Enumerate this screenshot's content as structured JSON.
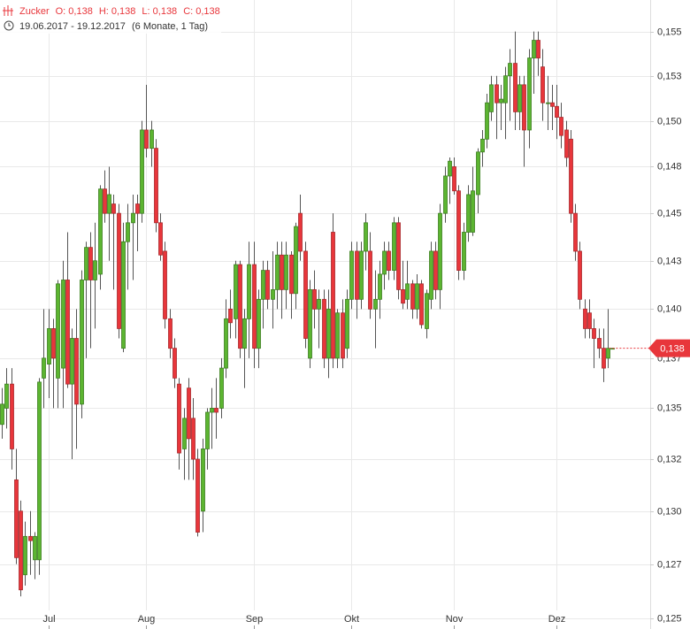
{
  "chart_data": {
    "type": "candlestick",
    "legend_fields": [
      "O: 0,138",
      "H: 0,138",
      "L: 0,138",
      "C: 0,138"
    ],
    "period": "19.06.2017 - 19.12.2017",
    "period_note": "(6 Monate, 1 Tag)",
    "log_scale": true,
    "grid": true,
    "up_color": "#5cb531",
    "down_color": "#e8363b",
    "ylim": [
      0.1245,
      0.1568
    ],
    "yticks": [
      {
        "value": 0.125,
        "label": "0,125"
      },
      {
        "value": 0.1275,
        "label": "0,127"
      },
      {
        "value": 0.13,
        "label": "0,130"
      },
      {
        "value": 0.1325,
        "label": "0,132"
      },
      {
        "value": 0.135,
        "label": "0,135"
      },
      {
        "value": 0.1375,
        "label": "0,137"
      },
      {
        "value": 0.14,
        "label": "0,140"
      },
      {
        "value": 0.1425,
        "label": "0,143"
      },
      {
        "value": 0.145,
        "label": "0,145"
      },
      {
        "value": 0.1475,
        "label": "0,148"
      },
      {
        "value": 0.15,
        "label": "0,150"
      },
      {
        "value": 0.1525,
        "label": "0,153"
      },
      {
        "value": 0.155,
        "label": "0,155"
      }
    ],
    "last_price": {
      "value": 0.138,
      "label": "0,138"
    },
    "categories": [
      null,
      null,
      null,
      null,
      null,
      null,
      null,
      null,
      null,
      null,
      "Jul",
      null,
      null,
      null,
      null,
      null,
      null,
      null,
      null,
      null,
      null,
      null,
      null,
      null,
      null,
      null,
      null,
      null,
      null,
      null,
      null,
      "Aug",
      null,
      null,
      null,
      null,
      null,
      null,
      null,
      null,
      null,
      null,
      null,
      null,
      null,
      null,
      null,
      null,
      null,
      null,
      null,
      null,
      null,
      null,
      "Sep",
      null,
      null,
      null,
      null,
      null,
      null,
      null,
      null,
      null,
      null,
      null,
      null,
      null,
      null,
      null,
      null,
      null,
      null,
      null,
      null,
      "Okt",
      null,
      null,
      null,
      null,
      null,
      null,
      null,
      null,
      null,
      null,
      null,
      null,
      null,
      null,
      null,
      null,
      null,
      null,
      null,
      null,
      null,
      "Nov",
      null,
      null,
      null,
      null,
      null,
      null,
      null,
      null,
      null,
      null,
      null,
      null,
      null,
      null,
      null,
      null,
      null,
      null,
      null,
      null,
      null,
      "Dez",
      null,
      null,
      null,
      null,
      null,
      null,
      null,
      null,
      null,
      null,
      null,
      null
    ],
    "series": [
      {
        "name": "Zucker",
        "open": [
          0.1342,
          0.135,
          0.1362,
          0.1315,
          0.13,
          0.127,
          0.1288,
          0.1277,
          0.1277,
          0.1365,
          0.1372,
          0.139,
          0.1365,
          0.137,
          0.1415,
          0.1362,
          0.1385,
          0.1352,
          0.1415,
          0.1432,
          0.1415,
          0.1418,
          0.1463,
          0.145,
          0.1455,
          0.145,
          0.138,
          0.1435,
          0.1445,
          0.1455,
          0.145,
          0.1495,
          0.1485,
          0.1485,
          0.1445,
          0.143,
          0.1395,
          0.138,
          0.1362,
          0.133,
          0.136,
          0.1345,
          0.1325,
          0.13,
          0.133,
          0.1348,
          0.135,
          0.135,
          0.137,
          0.14,
          0.1395,
          0.1423,
          0.138,
          0.1395,
          0.1423,
          0.138,
          0.1405,
          0.142,
          0.1405,
          0.141,
          0.1428,
          0.141,
          0.1428,
          0.1408,
          0.145,
          0.143,
          0.1375,
          0.141,
          0.14,
          0.1405,
          0.1375,
          0.144,
          0.1375,
          0.1398,
          0.138,
          0.1405,
          0.143,
          0.1405,
          0.143,
          0.143,
          0.14,
          0.1405,
          0.1418,
          0.143,
          0.142,
          0.1445,
          0.141,
          0.1405,
          0.1413,
          0.14,
          0.1413,
          0.139,
          0.1405,
          0.143,
          0.141,
          0.145,
          0.147,
          0.1475,
          0.1462,
          0.142,
          0.144,
          0.144,
          0.146,
          0.1483,
          0.149,
          0.1505,
          0.152,
          0.151,
          0.151,
          0.1525,
          0.1532,
          0.1505,
          0.152,
          0.1495,
          0.1535,
          0.1545,
          0.153,
          0.151,
          0.151,
          0.1508,
          0.1502,
          0.1495,
          0.149,
          0.145,
          0.143,
          0.14,
          0.1398,
          0.139,
          0.1385,
          0.138,
          0.1375,
          0.138
        ],
        "high": [
          0.136,
          0.137,
          0.137,
          0.133,
          0.1305,
          0.1295,
          0.13,
          0.129,
          0.1365,
          0.14,
          0.14,
          0.1395,
          0.1415,
          0.1425,
          0.144,
          0.139,
          0.14,
          0.142,
          0.1435,
          0.144,
          0.1445,
          0.1465,
          0.1473,
          0.1475,
          0.146,
          0.1455,
          0.1445,
          0.1455,
          0.146,
          0.146,
          0.15,
          0.152,
          0.15,
          0.149,
          0.145,
          0.1435,
          0.14,
          0.1385,
          0.1365,
          0.135,
          0.1365,
          0.1355,
          0.133,
          0.1335,
          0.135,
          0.136,
          0.1365,
          0.1375,
          0.1405,
          0.141,
          0.1425,
          0.1425,
          0.14,
          0.1435,
          0.1435,
          0.141,
          0.1425,
          0.1425,
          0.143,
          0.1435,
          0.1435,
          0.1435,
          0.143,
          0.1445,
          0.146,
          0.1435,
          0.1415,
          0.142,
          0.141,
          0.141,
          0.141,
          0.145,
          0.14,
          0.1405,
          0.141,
          0.1435,
          0.1435,
          0.1435,
          0.145,
          0.144,
          0.142,
          0.1425,
          0.1435,
          0.1435,
          0.1448,
          0.1448,
          0.1425,
          0.1425,
          0.1415,
          0.1418,
          0.1415,
          0.141,
          0.1435,
          0.1435,
          0.1455,
          0.1475,
          0.148,
          0.148,
          0.1465,
          0.1445,
          0.1465,
          0.1475,
          0.1485,
          0.1495,
          0.1515,
          0.1525,
          0.1525,
          0.152,
          0.153,
          0.154,
          0.155,
          0.1525,
          0.1525,
          0.154,
          0.155,
          0.155,
          0.154,
          0.1525,
          0.152,
          0.152,
          0.151,
          0.15,
          0.1495,
          0.1455,
          0.1435,
          0.1405,
          0.1405,
          0.1395,
          0.139,
          0.139,
          0.14,
          0.138
        ],
        "low": [
          0.1335,
          0.134,
          0.132,
          0.1275,
          0.126,
          0.1265,
          0.127,
          0.1268,
          0.127,
          0.135,
          0.1355,
          0.135,
          0.135,
          0.135,
          0.136,
          0.1325,
          0.133,
          0.1345,
          0.1375,
          0.138,
          0.139,
          0.141,
          0.1445,
          0.1425,
          0.141,
          0.1385,
          0.1378,
          0.141,
          0.1415,
          0.143,
          0.1445,
          0.148,
          0.1475,
          0.144,
          0.1425,
          0.139,
          0.1375,
          0.136,
          0.132,
          0.1315,
          0.1315,
          0.1315,
          0.1288,
          0.129,
          0.132,
          0.133,
          0.1335,
          0.1345,
          0.1365,
          0.1385,
          0.1385,
          0.1375,
          0.136,
          0.1375,
          0.137,
          0.137,
          0.139,
          0.14,
          0.139,
          0.14,
          0.1395,
          0.14,
          0.1395,
          0.14,
          0.1425,
          0.138,
          0.137,
          0.139,
          0.138,
          0.137,
          0.1365,
          0.137,
          0.137,
          0.137,
          0.1375,
          0.14,
          0.1395,
          0.14,
          0.142,
          0.1395,
          0.138,
          0.1395,
          0.141,
          0.1415,
          0.1415,
          0.1405,
          0.14,
          0.14,
          0.1395,
          0.1395,
          0.139,
          0.1385,
          0.14,
          0.1405,
          0.14,
          0.1445,
          0.1455,
          0.146,
          0.1415,
          0.1415,
          0.1435,
          0.1438,
          0.145,
          0.1475,
          0.1485,
          0.15,
          0.149,
          0.1495,
          0.149,
          0.15,
          0.1495,
          0.1495,
          0.1475,
          0.1485,
          0.1515,
          0.1525,
          0.15,
          0.1495,
          0.1495,
          0.149,
          0.1485,
          0.1475,
          0.1445,
          0.1425,
          0.14,
          0.1385,
          0.1385,
          0.137,
          0.1375,
          0.1363,
          0.137,
          0.138
        ],
        "close": [
          0.1352,
          0.1362,
          0.133,
          0.1278,
          0.1263,
          0.1288,
          0.1286,
          0.1288,
          0.1363,
          0.1375,
          0.139,
          0.1375,
          0.1413,
          0.1415,
          0.1362,
          0.1385,
          0.1352,
          0.1415,
          0.1432,
          0.1415,
          0.1425,
          0.1463,
          0.145,
          0.146,
          0.145,
          0.139,
          0.1435,
          0.1445,
          0.145,
          0.145,
          0.1495,
          0.1485,
          0.1495,
          0.1445,
          0.1428,
          0.1395,
          0.138,
          0.1365,
          0.1328,
          0.1345,
          0.1335,
          0.1325,
          0.129,
          0.133,
          0.1348,
          0.135,
          0.1348,
          0.137,
          0.1395,
          0.1393,
          0.1423,
          0.138,
          0.1395,
          0.1423,
          0.138,
          0.1405,
          0.142,
          0.1405,
          0.141,
          0.1428,
          0.141,
          0.1428,
          0.1408,
          0.1443,
          0.143,
          0.1385,
          0.141,
          0.14,
          0.1405,
          0.1375,
          0.14,
          0.1375,
          0.1398,
          0.1375,
          0.1405,
          0.143,
          0.1405,
          0.143,
          0.1445,
          0.14,
          0.1405,
          0.1418,
          0.143,
          0.142,
          0.1445,
          0.141,
          0.1403,
          0.1413,
          0.14,
          0.1413,
          0.1392,
          0.1408,
          0.143,
          0.141,
          0.145,
          0.147,
          0.1478,
          0.1462,
          0.142,
          0.144,
          0.146,
          0.1462,
          0.1483,
          0.149,
          0.151,
          0.152,
          0.151,
          0.1512,
          0.1525,
          0.1532,
          0.1505,
          0.152,
          0.1495,
          0.1535,
          0.1545,
          0.1535,
          0.151,
          0.151,
          0.1508,
          0.1502,
          0.1492,
          0.148,
          0.145,
          0.143,
          0.1405,
          0.139,
          0.139,
          0.1385,
          0.138,
          0.137,
          0.138,
          0.138
        ]
      }
    ]
  }
}
